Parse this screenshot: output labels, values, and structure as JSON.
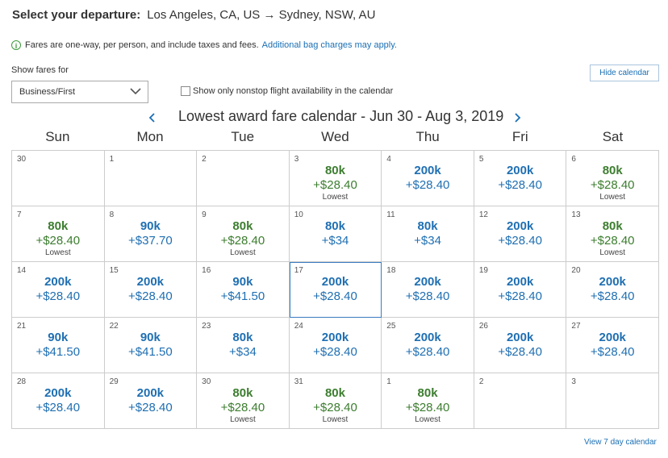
{
  "header": {
    "label": "Select your departure:",
    "route": "Los Angeles, CA, US → Sydney, NSW, AU"
  },
  "info": {
    "text": "Fares are one-way, per person, and include taxes and fees.",
    "link": "Additional bag charges may apply."
  },
  "filters": {
    "show_fares_label": "Show fares for",
    "cabin_selected": "Business/First",
    "nonstop_label": "Show only nonstop flight availability in the calendar",
    "hide_calendar": "Hide calendar"
  },
  "calendar": {
    "title": "Lowest award fare calendar - Jun 30 - Aug 3, 2019",
    "weekdays": [
      "Sun",
      "Mon",
      "Tue",
      "Wed",
      "Thu",
      "Fri",
      "Sat"
    ],
    "cells": [
      {
        "day": "30",
        "miles": "",
        "tax": "",
        "note": "",
        "color": ""
      },
      {
        "day": "1",
        "miles": "",
        "tax": "",
        "note": "",
        "color": ""
      },
      {
        "day": "2",
        "miles": "",
        "tax": "",
        "note": "",
        "color": ""
      },
      {
        "day": "3",
        "miles": "80k",
        "tax": "+$28.40",
        "note": "Lowest",
        "color": "green"
      },
      {
        "day": "4",
        "miles": "200k",
        "tax": "+$28.40",
        "note": "",
        "color": "blue"
      },
      {
        "day": "5",
        "miles": "200k",
        "tax": "+$28.40",
        "note": "",
        "color": "blue"
      },
      {
        "day": "6",
        "miles": "80k",
        "tax": "+$28.40",
        "note": "Lowest",
        "color": "green"
      },
      {
        "day": "7",
        "miles": "80k",
        "tax": "+$28.40",
        "note": "Lowest",
        "color": "green"
      },
      {
        "day": "8",
        "miles": "90k",
        "tax": "+$37.70",
        "note": "",
        "color": "blue"
      },
      {
        "day": "9",
        "miles": "80k",
        "tax": "+$28.40",
        "note": "Lowest",
        "color": "green"
      },
      {
        "day": "10",
        "miles": "80k",
        "tax": "+$34",
        "note": "",
        "color": "blue"
      },
      {
        "day": "11",
        "miles": "80k",
        "tax": "+$34",
        "note": "",
        "color": "blue"
      },
      {
        "day": "12",
        "miles": "200k",
        "tax": "+$28.40",
        "note": "",
        "color": "blue"
      },
      {
        "day": "13",
        "miles": "80k",
        "tax": "+$28.40",
        "note": "Lowest",
        "color": "green"
      },
      {
        "day": "14",
        "miles": "200k",
        "tax": "+$28.40",
        "note": "",
        "color": "blue"
      },
      {
        "day": "15",
        "miles": "200k",
        "tax": "+$28.40",
        "note": "",
        "color": "blue"
      },
      {
        "day": "16",
        "miles": "90k",
        "tax": "+$41.50",
        "note": "",
        "color": "blue"
      },
      {
        "day": "17",
        "miles": "200k",
        "tax": "+$28.40",
        "note": "",
        "color": "blue",
        "selected": true
      },
      {
        "day": "18",
        "miles": "200k",
        "tax": "+$28.40",
        "note": "",
        "color": "blue"
      },
      {
        "day": "19",
        "miles": "200k",
        "tax": "+$28.40",
        "note": "",
        "color": "blue"
      },
      {
        "day": "20",
        "miles": "200k",
        "tax": "+$28.40",
        "note": "",
        "color": "blue"
      },
      {
        "day": "21",
        "miles": "90k",
        "tax": "+$41.50",
        "note": "",
        "color": "blue"
      },
      {
        "day": "22",
        "miles": "90k",
        "tax": "+$41.50",
        "note": "",
        "color": "blue"
      },
      {
        "day": "23",
        "miles": "80k",
        "tax": "+$34",
        "note": "",
        "color": "blue"
      },
      {
        "day": "24",
        "miles": "200k",
        "tax": "+$28.40",
        "note": "",
        "color": "blue"
      },
      {
        "day": "25",
        "miles": "200k",
        "tax": "+$28.40",
        "note": "",
        "color": "blue"
      },
      {
        "day": "26",
        "miles": "200k",
        "tax": "+$28.40",
        "note": "",
        "color": "blue"
      },
      {
        "day": "27",
        "miles": "200k",
        "tax": "+$28.40",
        "note": "",
        "color": "blue"
      },
      {
        "day": "28",
        "miles": "200k",
        "tax": "+$28.40",
        "note": "",
        "color": "blue"
      },
      {
        "day": "29",
        "miles": "200k",
        "tax": "+$28.40",
        "note": "",
        "color": "blue"
      },
      {
        "day": "30",
        "miles": "80k",
        "tax": "+$28.40",
        "note": "Lowest",
        "color": "green"
      },
      {
        "day": "31",
        "miles": "80k",
        "tax": "+$28.40",
        "note": "Lowest",
        "color": "green"
      },
      {
        "day": "1",
        "miles": "80k",
        "tax": "+$28.40",
        "note": "Lowest",
        "color": "green"
      },
      {
        "day": "2",
        "miles": "",
        "tax": "",
        "note": "",
        "color": ""
      },
      {
        "day": "3",
        "miles": "",
        "tax": "",
        "note": "",
        "color": ""
      }
    ]
  },
  "footer": {
    "view7": "View 7 day calendar"
  },
  "colors": {
    "blue": "#1f6fb2",
    "green": "#3c7d2f",
    "link": "#1a6fb5"
  }
}
